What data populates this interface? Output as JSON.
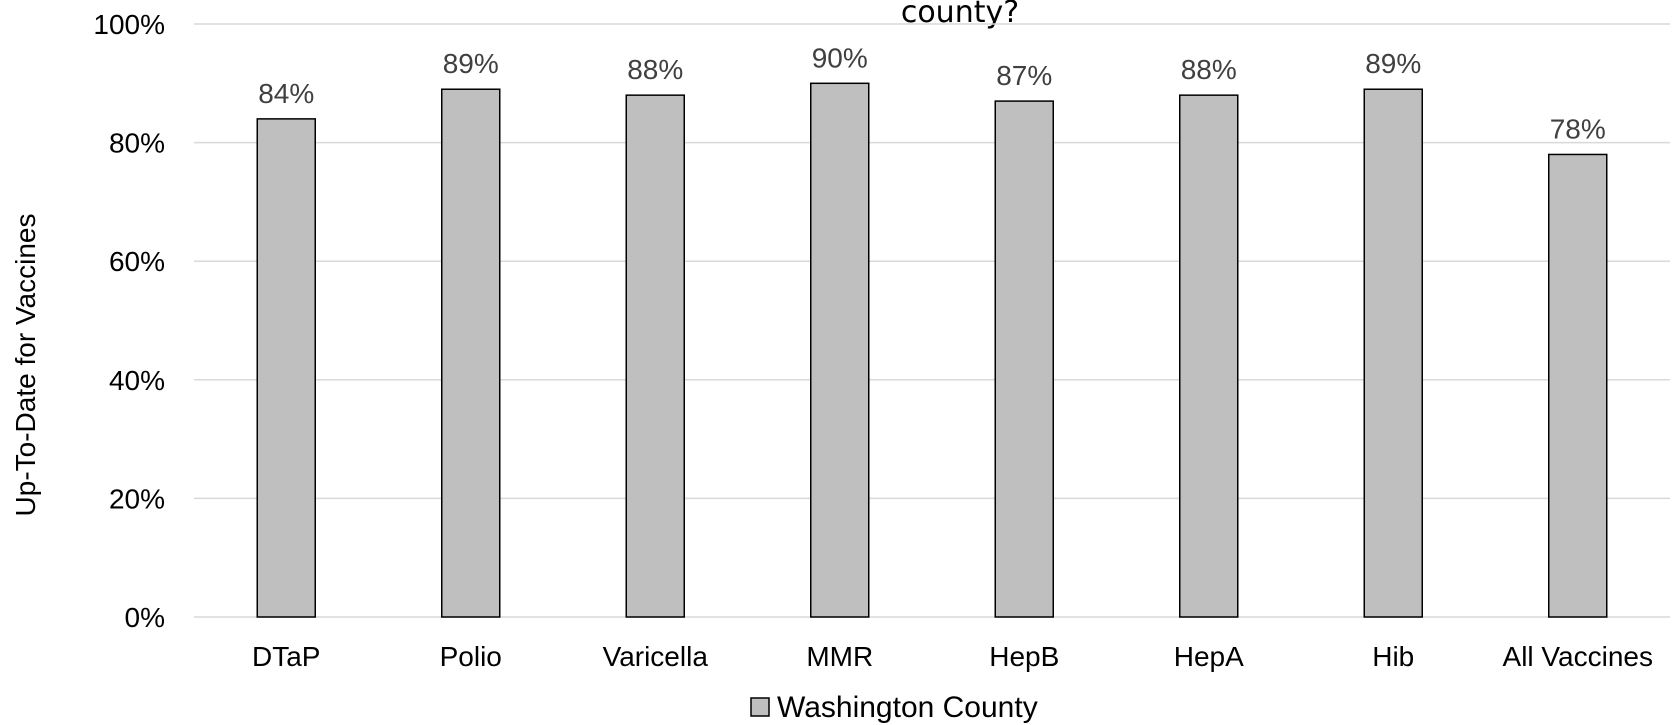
{
  "chart_data": {
    "type": "bar",
    "title": "county?",
    "xlabel": "",
    "ylabel": "Up-To-Date for Vaccines",
    "ylim": [
      0,
      100
    ],
    "y_ticks": [
      "0%",
      "20%",
      "40%",
      "60%",
      "80%",
      "100%"
    ],
    "categories": [
      "DTaP",
      "Polio",
      "Varicella",
      "MMR",
      "HepB",
      "HepA",
      "Hib",
      "All Vaccines"
    ],
    "series": [
      {
        "name": "Washington County",
        "values": [
          84,
          89,
          88,
          90,
          87,
          88,
          89,
          78
        ],
        "labels": [
          "84%",
          "89%",
          "88%",
          "90%",
          "87%",
          "88%",
          "89%",
          "78%"
        ],
        "color": "#bfbfbf"
      }
    ],
    "grid": true,
    "legend_position": "bottom"
  }
}
